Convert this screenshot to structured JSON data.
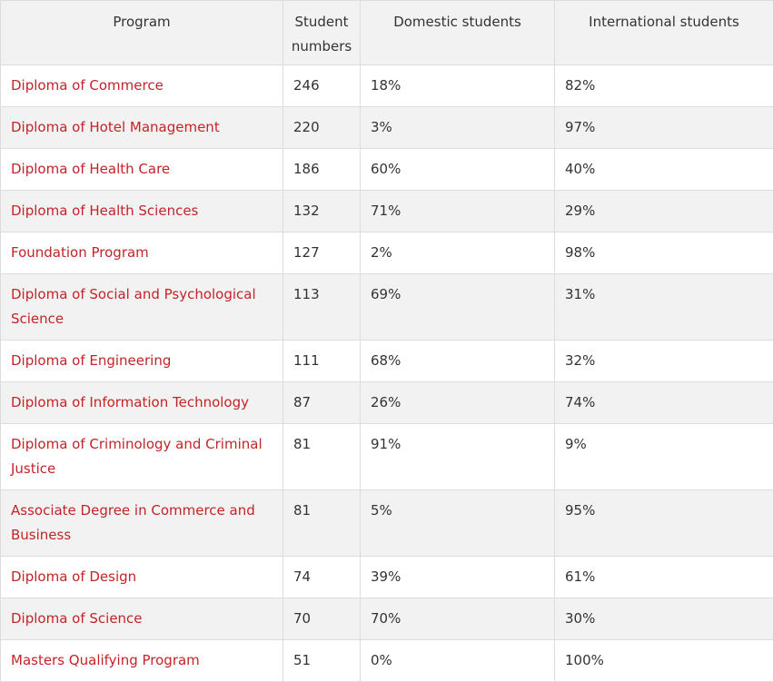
{
  "table": {
    "headers": [
      "Program",
      "Student numbers",
      "Domestic students",
      "International students"
    ],
    "rows": [
      {
        "program": "Diploma of Commerce",
        "students": "246",
        "domestic": "18%",
        "international": "82%"
      },
      {
        "program": "Diploma of Hotel Management",
        "students": "220",
        "domestic": "3%",
        "international": "97%"
      },
      {
        "program": "Diploma of Health Care",
        "students": "186",
        "domestic": "60%",
        "international": "40%"
      },
      {
        "program": "Diploma of Health Sciences",
        "students": "132",
        "domestic": "71%",
        "international": "29%"
      },
      {
        "program": "Foundation Program",
        "students": "127",
        "domestic": "2%",
        "international": "98%"
      },
      {
        "program": "Diploma of Social and Psychological Science",
        "students": "113",
        "domestic": "69%",
        "international": "31%"
      },
      {
        "program": "Diploma of Engineering",
        "students": "111",
        "domestic": "68%",
        "international": "32%"
      },
      {
        "program": "Diploma of Information Technology",
        "students": "87",
        "domestic": "26%",
        "international": "74%"
      },
      {
        "program": "Diploma of Criminology and Criminal Justice",
        "students": "81",
        "domestic": "91%",
        "international": "9%"
      },
      {
        "program": "Associate Degree in Commerce and Business",
        "students": "81",
        "domestic": "5%",
        "international": "95%"
      },
      {
        "program": "Diploma of Design",
        "students": "74",
        "domestic": "39%",
        "international": "61%"
      },
      {
        "program": "Diploma of Science",
        "students": "70",
        "domestic": "70%",
        "international": "30%"
      },
      {
        "program": "Masters Qualifying Program",
        "students": "51",
        "domestic": "0%",
        "international": "100%"
      }
    ]
  },
  "colors": {
    "link": "#c42328",
    "header_bg": "#f2f2f2",
    "alt_row_bg": "#f2f2f2",
    "border": "#dcdcdc"
  }
}
